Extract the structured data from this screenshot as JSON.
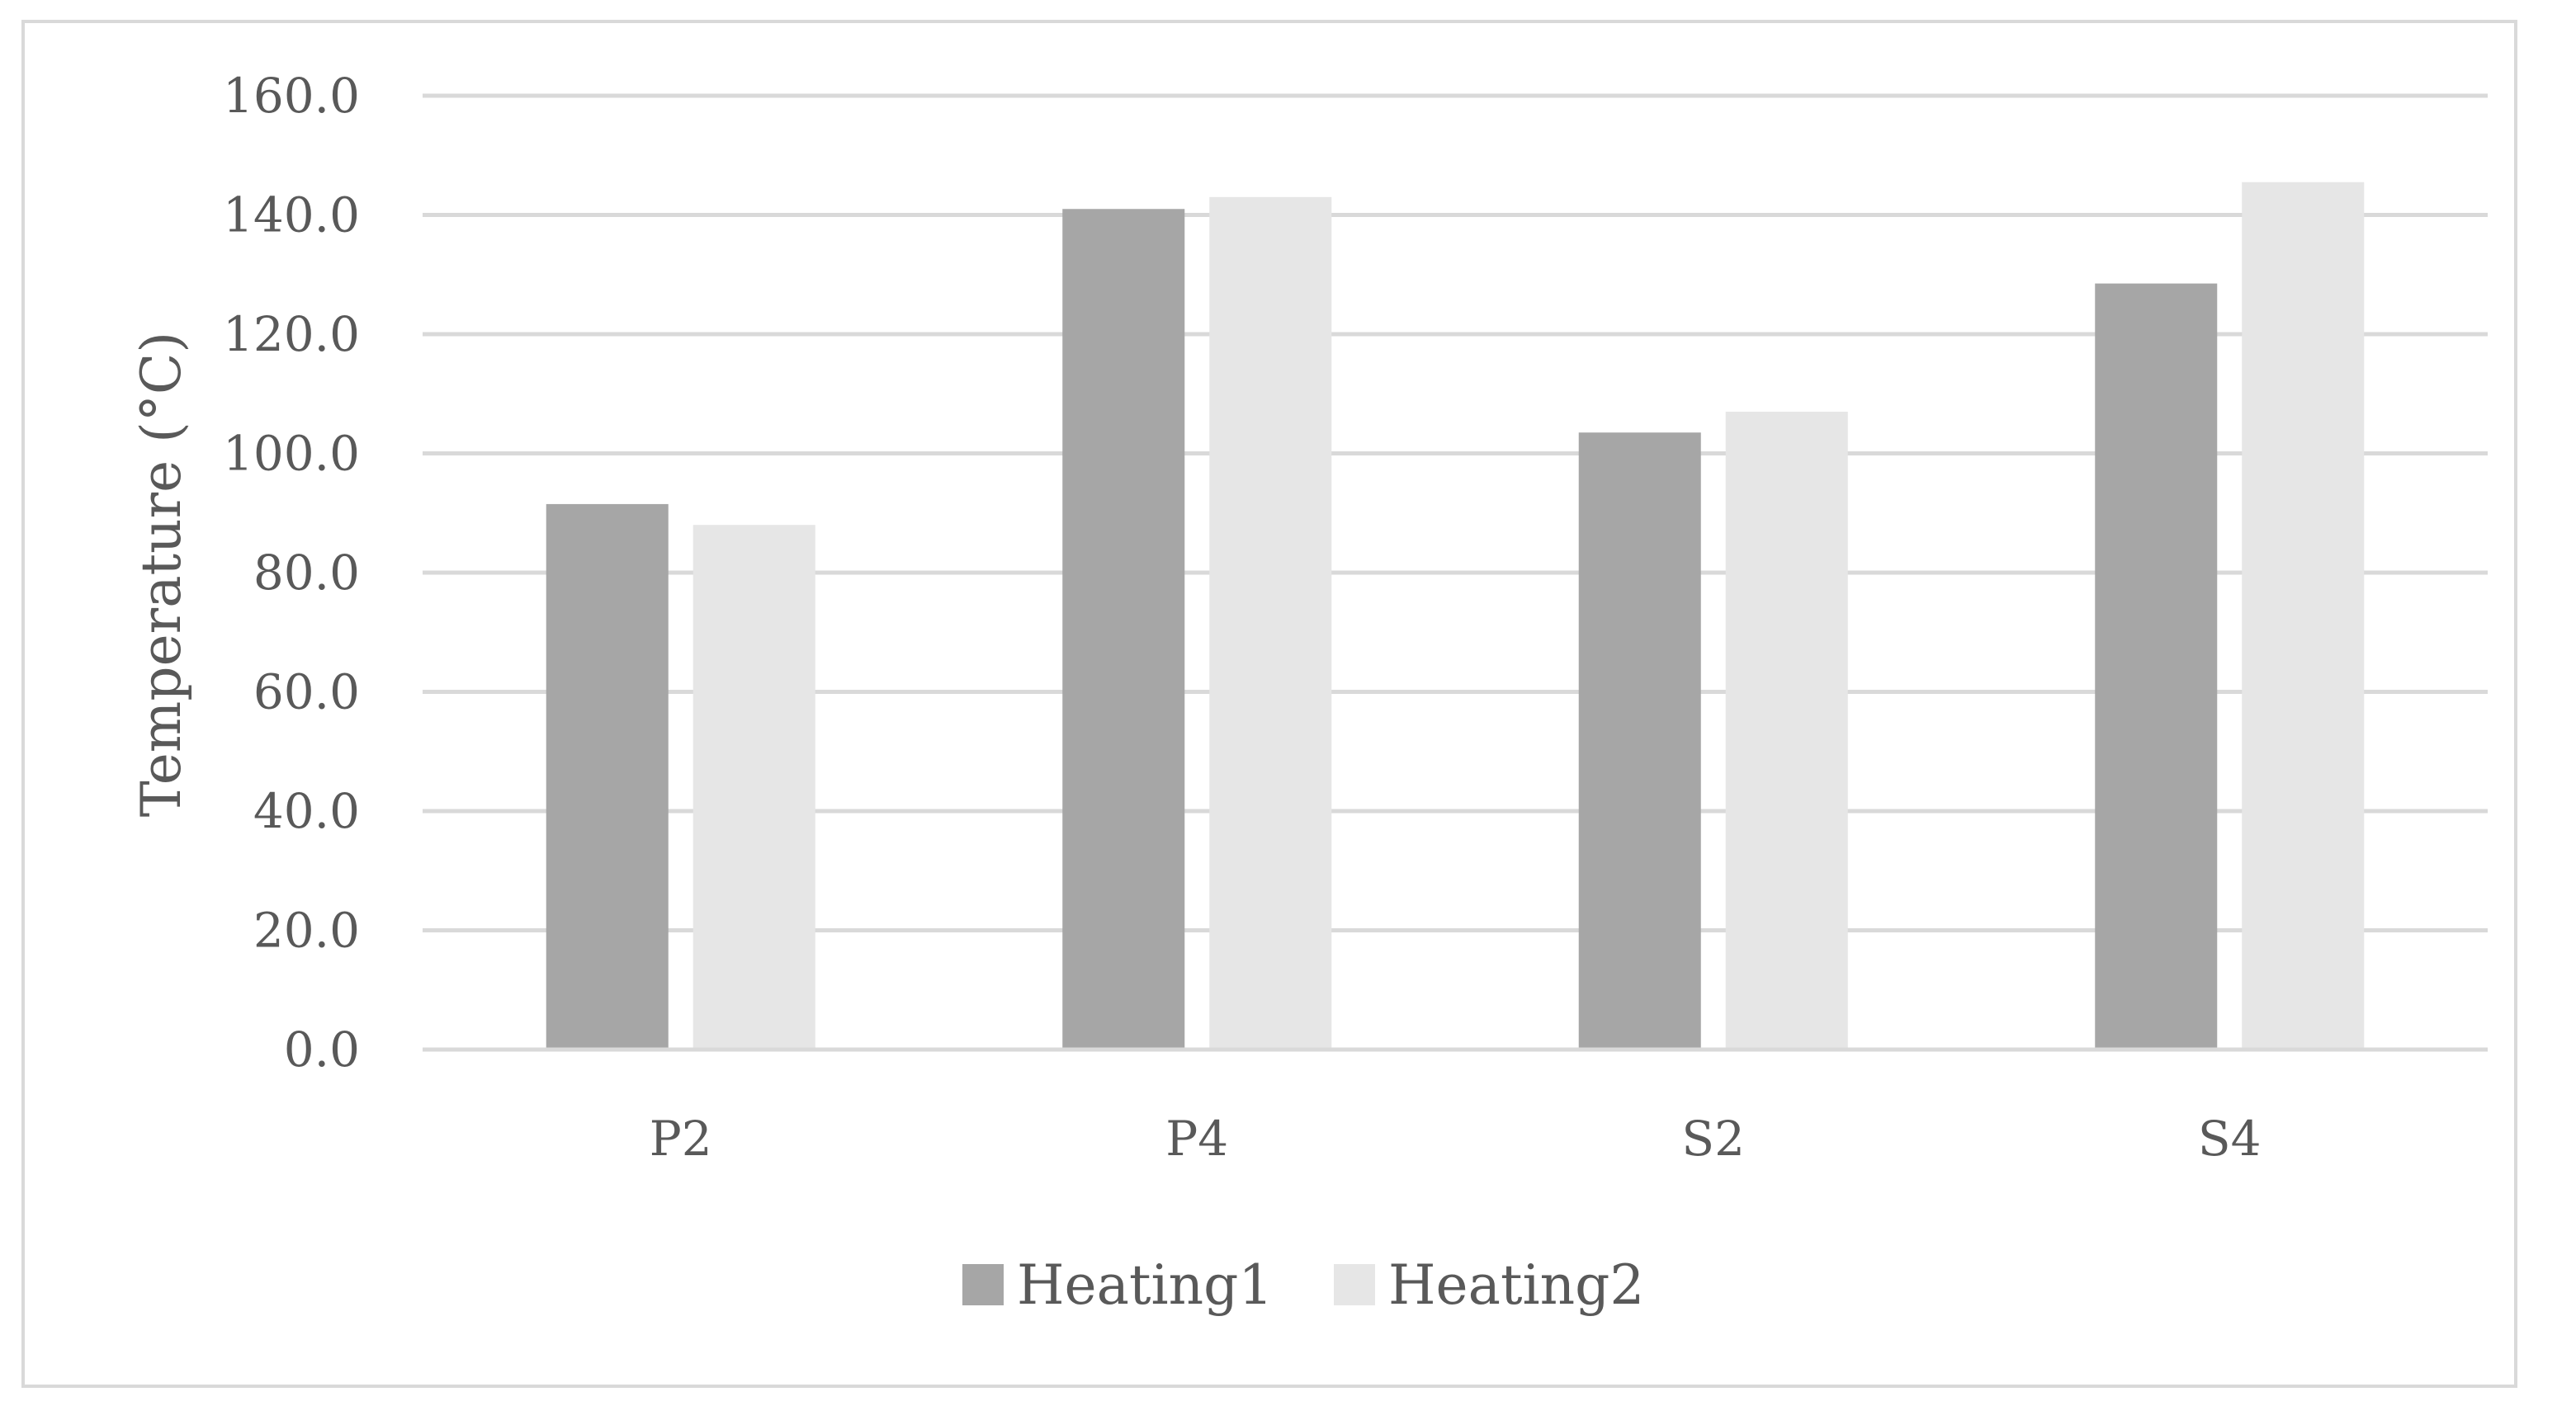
{
  "chart_data": {
    "type": "bar",
    "categories": [
      "P2",
      "P4",
      "S2",
      "S4"
    ],
    "series": [
      {
        "name": "Heating1",
        "values": [
          91.5,
          141.0,
          103.5,
          128.5
        ],
        "color": "#a6a6a6"
      },
      {
        "name": "Heating2",
        "values": [
          88.0,
          143.0,
          107.0,
          145.5
        ],
        "color": "#e6e6e6"
      }
    ],
    "title": "",
    "xlabel": "",
    "ylabel": "Temperature (°C)",
    "ylim": [
      0,
      160
    ],
    "yticks": [
      "0.0",
      "20.0",
      "40.0",
      "60.0",
      "80.0",
      "100.0",
      "120.0",
      "140.0",
      "160.0"
    ],
    "grid": true,
    "gridline_color": "#d9d9d9",
    "text_color": "#595959",
    "legend_position": "bottom"
  }
}
